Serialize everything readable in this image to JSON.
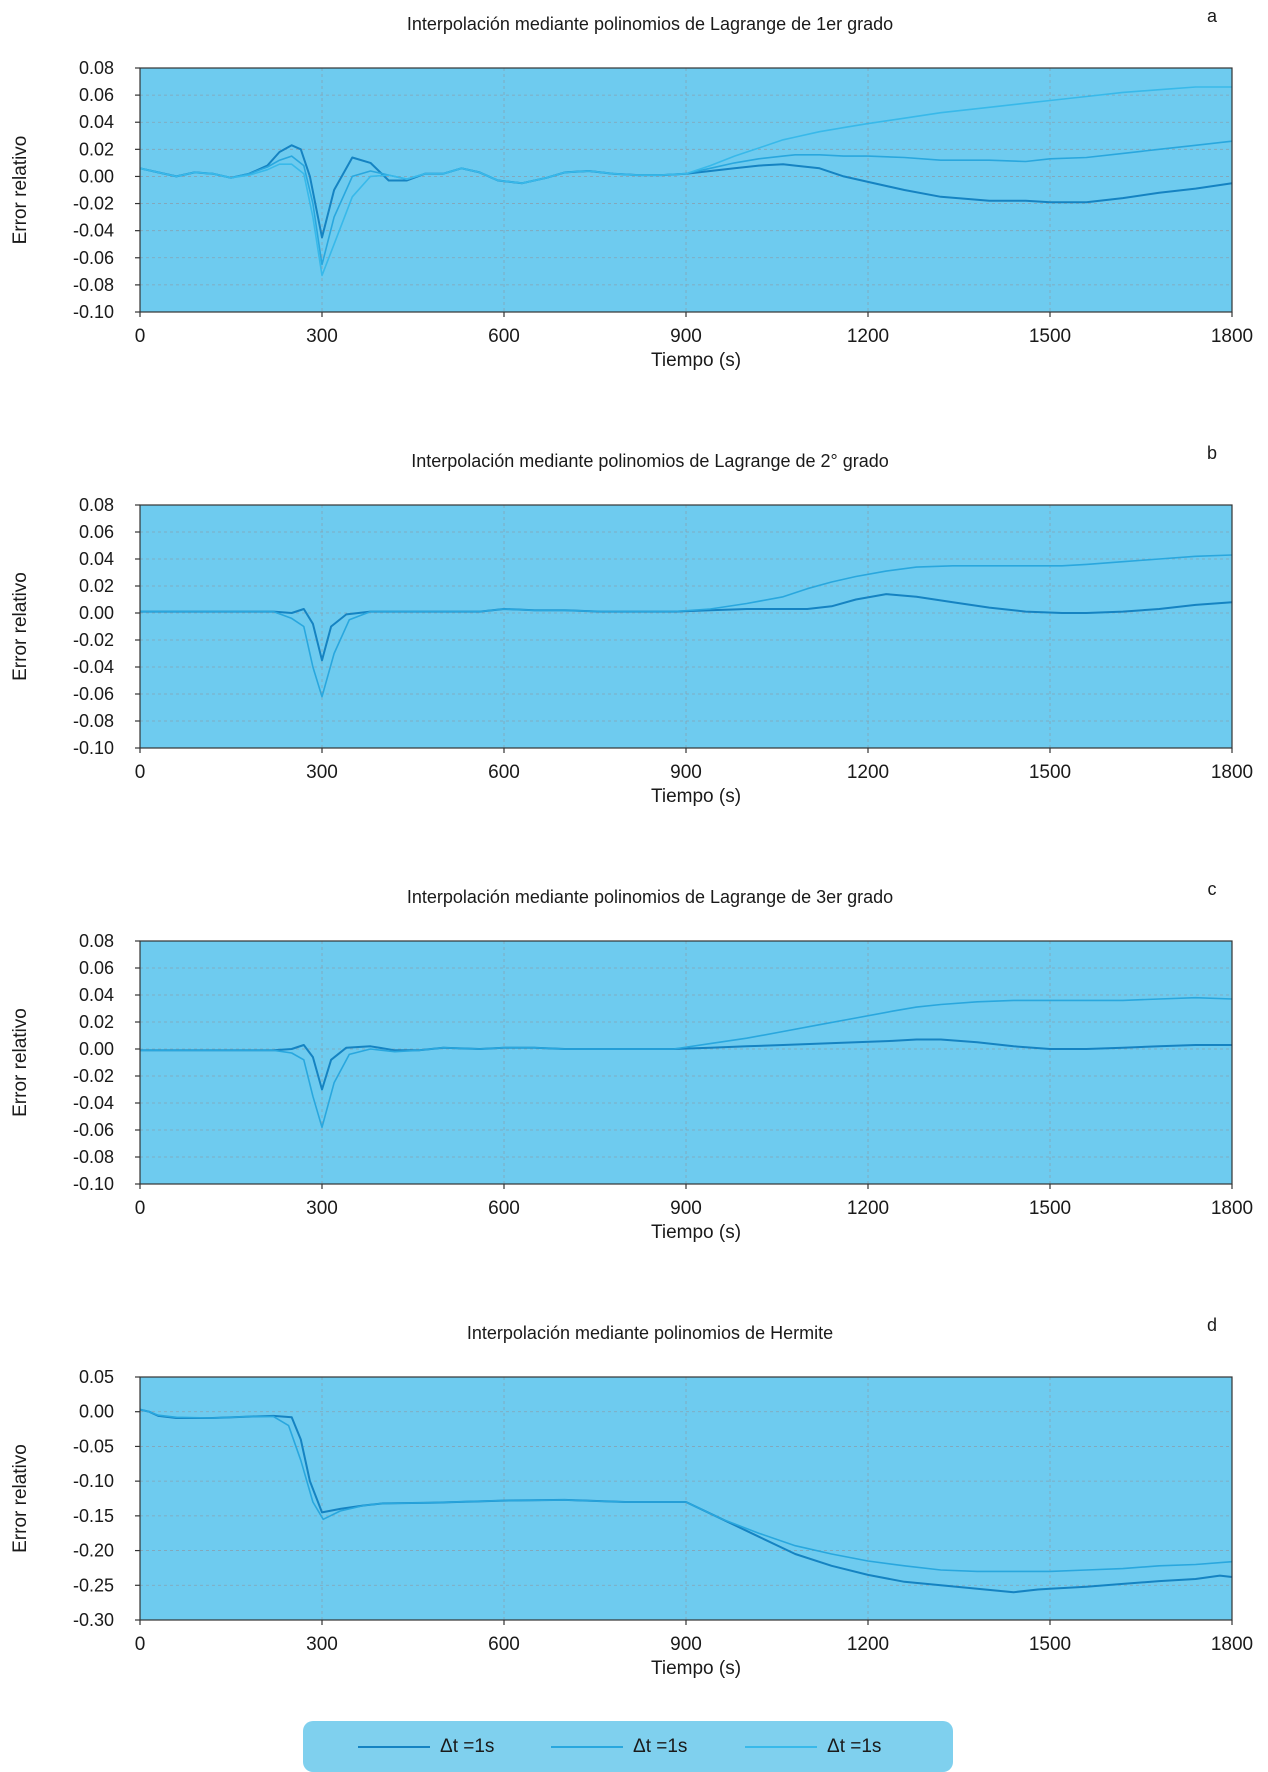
{
  "colors": {
    "panel_bg": "#6ecbef",
    "axis": "#333333",
    "grid": "#8a9aa6",
    "text": "#1a1a1a",
    "series_dark": "#1583c2",
    "series_mid": "#29a7de",
    "series_light": "#38b9ea"
  },
  "chart_data": [
    {
      "type": "line",
      "panel_letter": "a",
      "title": "Interpolación mediante polinomios de Lagrange de 1er grado",
      "xlabel": "Tiempo (s)",
      "ylabel": "Error relativo",
      "xlim": [
        0,
        1800
      ],
      "ylim": [
        -0.1,
        0.08
      ],
      "xticks": [
        "0",
        "300",
        "600",
        "900",
        "1200",
        "1500",
        "1800"
      ],
      "yticks": [
        "0.08",
        "0.06",
        "0.04",
        "0.02",
        "0.00",
        "-0.02",
        "-0.04",
        "-0.06",
        "-0.08",
        "-0.10"
      ],
      "grid": true,
      "series": [
        {
          "color": "#1583c2",
          "x": [
            0,
            30,
            60,
            90,
            120,
            150,
            180,
            210,
            230,
            250,
            265,
            280,
            300,
            320,
            350,
            380,
            410,
            440,
            470,
            500,
            530,
            560,
            590,
            630,
            670,
            700,
            740,
            780,
            820,
            860,
            900,
            940,
            980,
            1020,
            1060,
            1080,
            1120,
            1160,
            1200,
            1260,
            1320,
            1400,
            1460,
            1500,
            1560,
            1620,
            1680,
            1740,
            1800
          ],
          "y": [
            0.006,
            0.003,
            0.0,
            0.003,
            0.002,
            -0.001,
            0.002,
            0.008,
            0.018,
            0.023,
            0.02,
            0.0,
            -0.045,
            -0.01,
            0.014,
            0.01,
            -0.003,
            -0.003,
            0.002,
            0.002,
            0.006,
            0.003,
            -0.003,
            -0.005,
            -0.001,
            0.003,
            0.004,
            0.002,
            0.001,
            0.001,
            0.002,
            0.004,
            0.006,
            0.008,
            0.009,
            0.008,
            0.006,
            0.0,
            -0.004,
            -0.01,
            -0.015,
            -0.018,
            -0.018,
            -0.019,
            -0.019,
            -0.016,
            -0.012,
            -0.009,
            -0.005
          ]
        },
        {
          "color": "#29a7de",
          "x": [
            0,
            30,
            60,
            90,
            120,
            150,
            180,
            210,
            230,
            250,
            270,
            285,
            300,
            320,
            350,
            380,
            410,
            440,
            470,
            500,
            530,
            560,
            590,
            630,
            670,
            700,
            740,
            780,
            820,
            860,
            900,
            940,
            980,
            1020,
            1060,
            1080,
            1120,
            1160,
            1200,
            1260,
            1320,
            1400,
            1460,
            1500,
            1560,
            1620,
            1680,
            1740,
            1800
          ],
          "y": [
            0.006,
            0.003,
            0.0,
            0.003,
            0.002,
            -0.001,
            0.002,
            0.007,
            0.012,
            0.015,
            0.008,
            -0.02,
            -0.065,
            -0.03,
            0.0,
            0.004,
            0.001,
            -0.002,
            0.002,
            0.002,
            0.006,
            0.003,
            -0.003,
            -0.005,
            -0.001,
            0.003,
            0.004,
            0.002,
            0.001,
            0.001,
            0.002,
            0.006,
            0.01,
            0.013,
            0.015,
            0.016,
            0.016,
            0.015,
            0.015,
            0.014,
            0.012,
            0.012,
            0.011,
            0.013,
            0.014,
            0.017,
            0.02,
            0.023,
            0.026
          ]
        },
        {
          "color": "#38b9ea",
          "x": [
            0,
            30,
            60,
            90,
            120,
            150,
            180,
            210,
            230,
            250,
            270,
            285,
            300,
            320,
            350,
            380,
            410,
            440,
            470,
            500,
            530,
            560,
            590,
            630,
            670,
            700,
            740,
            780,
            820,
            860,
            900,
            940,
            980,
            1020,
            1060,
            1080,
            1120,
            1160,
            1200,
            1260,
            1320,
            1400,
            1460,
            1500,
            1560,
            1620,
            1680,
            1740,
            1800
          ],
          "y": [
            0.006,
            0.003,
            0.0,
            0.003,
            0.002,
            -0.001,
            0.001,
            0.005,
            0.009,
            0.009,
            0.002,
            -0.03,
            -0.073,
            -0.05,
            -0.015,
            0.0,
            0.001,
            -0.002,
            0.002,
            0.002,
            0.006,
            0.003,
            -0.003,
            -0.005,
            -0.001,
            0.003,
            0.004,
            0.002,
            0.001,
            0.001,
            0.002,
            0.008,
            0.015,
            0.021,
            0.027,
            0.029,
            0.033,
            0.036,
            0.039,
            0.043,
            0.047,
            0.051,
            0.054,
            0.056,
            0.059,
            0.062,
            0.064,
            0.066,
            0.066
          ]
        }
      ]
    },
    {
      "type": "line",
      "panel_letter": "b",
      "title": "Interpolación mediante polinomios de Lagrange de 2° grado",
      "xlabel": "Tiempo (s)",
      "ylabel": "Error relativo",
      "xlim": [
        0,
        1800
      ],
      "ylim": [
        -0.1,
        0.08
      ],
      "xticks": [
        "0",
        "300",
        "600",
        "900",
        "1200",
        "1500",
        "1800"
      ],
      "yticks": [
        "0.08",
        "0.06",
        "0.04",
        "0.02",
        "0.00",
        "-0.02",
        "-0.04",
        "-0.06",
        "-0.08",
        "-0.10"
      ],
      "grid": true,
      "series": [
        {
          "color": "#1583c2",
          "x": [
            0,
            60,
            120,
            180,
            220,
            250,
            270,
            285,
            300,
            315,
            340,
            380,
            450,
            530,
            560,
            600,
            650,
            700,
            760,
            820,
            880,
            940,
            1000,
            1060,
            1100,
            1140,
            1180,
            1230,
            1280,
            1340,
            1400,
            1460,
            1520,
            1560,
            1620,
            1680,
            1740,
            1800
          ],
          "y": [
            0.001,
            0.001,
            0.001,
            0.001,
            0.001,
            0.0,
            0.003,
            -0.008,
            -0.035,
            -0.01,
            -0.001,
            0.001,
            0.001,
            0.001,
            0.001,
            0.003,
            0.002,
            0.002,
            0.001,
            0.001,
            0.001,
            0.002,
            0.003,
            0.003,
            0.003,
            0.005,
            0.01,
            0.014,
            0.012,
            0.008,
            0.004,
            0.001,
            0.0,
            0.0,
            0.001,
            0.003,
            0.006,
            0.008
          ]
        },
        {
          "color": "#29a7de",
          "x": [
            0,
            60,
            120,
            180,
            220,
            250,
            270,
            285,
            300,
            320,
            345,
            380,
            450,
            530,
            560,
            600,
            650,
            700,
            760,
            820,
            880,
            940,
            1000,
            1060,
            1100,
            1140,
            1180,
            1230,
            1280,
            1340,
            1400,
            1460,
            1520,
            1560,
            1620,
            1680,
            1740,
            1800
          ],
          "y": [
            0.001,
            0.001,
            0.001,
            0.001,
            0.001,
            -0.004,
            -0.01,
            -0.04,
            -0.062,
            -0.03,
            -0.005,
            0.001,
            0.001,
            0.001,
            0.001,
            0.003,
            0.002,
            0.002,
            0.001,
            0.001,
            0.001,
            0.003,
            0.007,
            0.012,
            0.018,
            0.023,
            0.027,
            0.031,
            0.034,
            0.035,
            0.035,
            0.035,
            0.035,
            0.036,
            0.038,
            0.04,
            0.042,
            0.043
          ]
        }
      ]
    },
    {
      "type": "line",
      "panel_letter": "c",
      "title": "Interpolación mediante polinomios de Lagrange de 3er grado",
      "xlabel": "Tiempo (s)",
      "ylabel": "Error relativo",
      "xlim": [
        0,
        1800
      ],
      "ylim": [
        -0.1,
        0.08
      ],
      "xticks": [
        "0",
        "300",
        "600",
        "900",
        "1200",
        "1500",
        "1800"
      ],
      "yticks": [
        "0.08",
        "0.06",
        "0.04",
        "0.02",
        "0.00",
        "-0.02",
        "-0.04",
        "-0.06",
        "-0.08",
        "-0.10"
      ],
      "grid": true,
      "series": [
        {
          "color": "#1583c2",
          "x": [
            0,
            60,
            120,
            180,
            220,
            250,
            270,
            285,
            300,
            315,
            340,
            380,
            420,
            460,
            500,
            560,
            600,
            650,
            700,
            760,
            820,
            880,
            940,
            1000,
            1060,
            1120,
            1180,
            1240,
            1280,
            1320,
            1380,
            1440,
            1500,
            1560,
            1620,
            1680,
            1740,
            1800
          ],
          "y": [
            -0.001,
            -0.001,
            -0.001,
            -0.001,
            -0.001,
            0.0,
            0.003,
            -0.006,
            -0.03,
            -0.008,
            0.001,
            0.002,
            -0.001,
            -0.001,
            0.001,
            0.0,
            0.001,
            0.001,
            0.0,
            0.0,
            0.0,
            0.0,
            0.001,
            0.002,
            0.003,
            0.004,
            0.005,
            0.006,
            0.007,
            0.007,
            0.005,
            0.002,
            0.0,
            0.0,
            0.001,
            0.002,
            0.003,
            0.003
          ]
        },
        {
          "color": "#29a7de",
          "x": [
            0,
            60,
            120,
            180,
            220,
            250,
            270,
            285,
            300,
            320,
            345,
            380,
            420,
            460,
            500,
            560,
            600,
            650,
            700,
            760,
            820,
            880,
            940,
            1000,
            1060,
            1120,
            1180,
            1240,
            1280,
            1320,
            1380,
            1440,
            1500,
            1560,
            1620,
            1680,
            1740,
            1800
          ],
          "y": [
            -0.001,
            -0.001,
            -0.001,
            -0.001,
            -0.001,
            -0.003,
            -0.008,
            -0.035,
            -0.058,
            -0.025,
            -0.004,
            0.0,
            -0.002,
            -0.001,
            0.001,
            0.0,
            0.001,
            0.001,
            0.0,
            0.0,
            0.0,
            0.0,
            0.004,
            0.008,
            0.013,
            0.018,
            0.023,
            0.028,
            0.031,
            0.033,
            0.035,
            0.036,
            0.036,
            0.036,
            0.036,
            0.037,
            0.038,
            0.037
          ]
        }
      ]
    },
    {
      "type": "line",
      "panel_letter": "d",
      "title": "Interpolación mediante polinomios de Hermite",
      "xlabel": "Tiempo (s)",
      "ylabel": "Error relativo",
      "xlim": [
        0,
        1800
      ],
      "ylim": [
        -0.3,
        0.05
      ],
      "xticks": [
        "0",
        "300",
        "600",
        "900",
        "1200",
        "1500",
        "1800"
      ],
      "yticks": [
        "0.05",
        "0.00",
        "-0.05",
        "-0.10",
        "-0.15",
        "-0.20",
        "-0.25",
        "-0.30"
      ],
      "grid": true,
      "series": [
        {
          "color": "#1583c2",
          "x": [
            0,
            15,
            30,
            60,
            120,
            180,
            220,
            250,
            265,
            280,
            300,
            330,
            370,
            400,
            480,
            600,
            700,
            800,
            900,
            960,
            1020,
            1080,
            1140,
            1200,
            1260,
            1320,
            1380,
            1440,
            1480,
            1500,
            1560,
            1620,
            1680,
            1740,
            1780,
            1800
          ],
          "y": [
            0.003,
            0.0,
            -0.006,
            -0.009,
            -0.009,
            -0.007,
            -0.006,
            -0.008,
            -0.04,
            -0.1,
            -0.145,
            -0.14,
            -0.135,
            -0.132,
            -0.131,
            -0.128,
            -0.127,
            -0.13,
            -0.13,
            -0.155,
            -0.18,
            -0.205,
            -0.222,
            -0.235,
            -0.245,
            -0.25,
            -0.255,
            -0.26,
            -0.256,
            -0.255,
            -0.252,
            -0.248,
            -0.244,
            -0.241,
            -0.236,
            -0.238
          ]
        },
        {
          "color": "#29a7de",
          "x": [
            0,
            15,
            30,
            60,
            120,
            180,
            220,
            245,
            265,
            285,
            302,
            330,
            370,
            400,
            480,
            600,
            700,
            800,
            900,
            960,
            1020,
            1080,
            1140,
            1200,
            1260,
            1320,
            1380,
            1440,
            1500,
            1560,
            1620,
            1680,
            1740,
            1800
          ],
          "y": [
            0.003,
            0.0,
            -0.005,
            -0.008,
            -0.009,
            -0.007,
            -0.007,
            -0.02,
            -0.07,
            -0.13,
            -0.155,
            -0.143,
            -0.135,
            -0.132,
            -0.131,
            -0.128,
            -0.127,
            -0.13,
            -0.13,
            -0.155,
            -0.175,
            -0.193,
            -0.205,
            -0.215,
            -0.222,
            -0.228,
            -0.23,
            -0.23,
            -0.23,
            -0.228,
            -0.226,
            -0.222,
            -0.22,
            -0.216
          ]
        }
      ]
    }
  ],
  "legend": {
    "items": [
      {
        "label": "Δt =1s",
        "color": "#1583c2"
      },
      {
        "label": "Δt =1s",
        "color": "#29a7de"
      },
      {
        "label": "Δt =1s",
        "color": "#38b9ea"
      }
    ]
  }
}
